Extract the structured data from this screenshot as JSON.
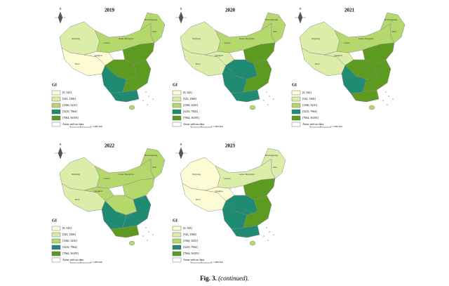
{
  "panels": [
    {
      "year": "2019",
      "fills": [
        "#dcedaa",
        "#fdfbd3",
        "#fdfbd3",
        "#b5d86c",
        "#b5d86c",
        "#5c9b1f",
        "#5c9b1f",
        "#1f8b73",
        "#5c9b1f",
        "#1f8b73",
        "#b5d86c"
      ]
    },
    {
      "year": "2020",
      "fills": [
        "#dcedaa",
        "#dcedaa",
        "#dcedaa",
        "#b5d86c",
        "#b5d86c",
        "#5c9b1f",
        "#1f8b73",
        "#1f8b73",
        "#5c9b1f",
        "#1f8b73",
        "#b5d86c"
      ]
    },
    {
      "year": "2021",
      "fills": [
        "#dcedaa",
        "#dcedaa",
        "#dcedaa",
        "#b5d86c",
        "#b5d86c",
        "#5c9b1f",
        "#5c9b1f",
        "#1f8b73",
        "#5c9b1f",
        "#5c9b1f",
        "#b5d86c"
      ]
    },
    {
      "year": "2022",
      "fills": [
        "#dcedaa",
        "#dcedaa",
        "#b5d86c",
        "#b5d86c",
        "#b5d86c",
        "#b5d86c",
        "#b5d86c",
        "#1f8b73",
        "#1f8b73",
        "#5c9b1f",
        "#b5d86c"
      ]
    },
    {
      "year": "2023",
      "fills": [
        "#fdfbd3",
        "#fdfbd3",
        "#fdfbd3",
        "#dcedaa",
        "#dcedaa",
        "#5c9b1f",
        "#1f8b73",
        "#1f8b73",
        "#5c9b1f",
        "#1f8b73",
        "#b5d86c"
      ]
    }
  ],
  "legend": {
    "title": "GI",
    "items": [
      "[0,  543]",
      "[543,  1560]",
      "[1560,  3210]",
      "[3210,  7964]",
      "[7964,  56195]",
      "Areas with no data"
    ],
    "colors": [
      "#fdfbd3",
      "#dcedaa",
      "#b5d86c",
      "#1f8b73",
      "#5c9b1f",
      "#ffffff"
    ]
  },
  "north": "N",
  "scale": "1,000 Km",
  "labels": [
    "Xinjiang",
    "Tibet",
    "Qinghai",
    "Gansu",
    "Inner Mongolia",
    "Heilongjiang",
    "Jilin"
  ],
  "caption": {
    "label": "Fig. 3.",
    "text": "(continued)."
  }
}
